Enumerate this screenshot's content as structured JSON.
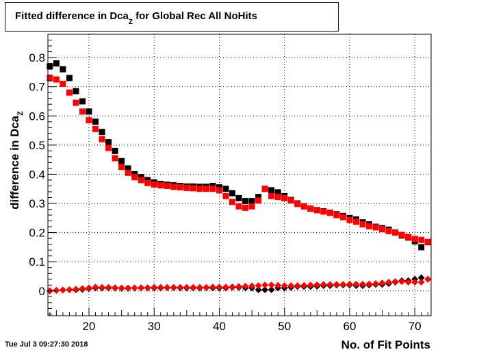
{
  "chart_data": {
    "type": "scatter",
    "title_main": "Fitted difference in Dca",
    "title_sub": "Z",
    "title_rest": " for Global Rec All NoHits",
    "xlabel": "No. of Fit Points",
    "ylabel_main": "difference in Dca",
    "ylabel_sub": "Z",
    "xlim": [
      13.7,
      72.5
    ],
    "ylim": [
      -0.085,
      0.88
    ],
    "x_ticks": [
      20,
      30,
      40,
      50,
      60,
      70
    ],
    "y_ticks": [
      0,
      0.1,
      0.2,
      0.3,
      0.4,
      0.5,
      0.6,
      0.7,
      0.8
    ],
    "grid": true,
    "series": [
      {
        "color": "#000000",
        "marker": "square",
        "x": [
          14,
          15,
          16,
          17,
          18,
          19,
          20,
          21,
          22,
          23,
          24,
          25,
          26,
          27,
          28,
          29,
          30,
          31,
          32,
          33,
          34,
          35,
          36,
          37,
          38,
          39,
          40,
          41,
          42,
          43,
          44,
          45,
          46,
          47,
          48,
          49,
          50,
          51,
          52,
          53,
          54,
          55,
          56,
          57,
          58,
          59,
          60,
          61,
          62,
          63,
          64,
          65,
          66,
          67,
          68,
          69,
          70,
          71,
          72
        ],
        "y": [
          0.77,
          0.78,
          0.76,
          0.73,
          0.685,
          0.65,
          0.615,
          0.58,
          0.545,
          0.51,
          0.48,
          0.445,
          0.42,
          0.4,
          0.39,
          0.38,
          0.372,
          0.367,
          0.364,
          0.362,
          0.36,
          0.358,
          0.358,
          0.357,
          0.357,
          0.36,
          0.355,
          0.35,
          0.335,
          0.318,
          0.308,
          0.308,
          0.322,
          0.35,
          0.345,
          0.338,
          0.325,
          0.312,
          0.3,
          0.29,
          0.282,
          0.277,
          0.273,
          0.268,
          0.263,
          0.257,
          0.25,
          0.245,
          0.235,
          0.228,
          0.22,
          0.215,
          0.21,
          0.2,
          0.19,
          0.183,
          0.17,
          0.15,
          0.167
        ]
      },
      {
        "color": "#ff0000",
        "marker": "square",
        "x": [
          14,
          15,
          16,
          17,
          18,
          19,
          20,
          21,
          22,
          23,
          24,
          25,
          26,
          27,
          28,
          29,
          30,
          31,
          32,
          33,
          34,
          35,
          36,
          37,
          38,
          39,
          40,
          41,
          42,
          43,
          44,
          45,
          46,
          47,
          48,
          49,
          50,
          51,
          52,
          53,
          54,
          55,
          56,
          57,
          58,
          59,
          60,
          61,
          62,
          63,
          64,
          65,
          66,
          67,
          68,
          69,
          70,
          71,
          72
        ],
        "y": [
          0.73,
          0.725,
          0.71,
          0.68,
          0.645,
          0.615,
          0.585,
          0.555,
          0.52,
          0.49,
          0.455,
          0.425,
          0.405,
          0.39,
          0.38,
          0.37,
          0.365,
          0.362,
          0.36,
          0.357,
          0.355,
          0.353,
          0.352,
          0.35,
          0.35,
          0.35,
          0.345,
          0.325,
          0.305,
          0.29,
          0.285,
          0.29,
          0.31,
          0.35,
          0.325,
          0.322,
          0.318,
          0.31,
          0.298,
          0.29,
          0.282,
          0.277,
          0.272,
          0.268,
          0.26,
          0.253,
          0.243,
          0.237,
          0.228,
          0.222,
          0.218,
          0.212,
          0.205,
          0.2,
          0.192,
          0.185,
          0.178,
          0.175,
          0.168
        ]
      },
      {
        "color": "#000000",
        "marker": "diamond",
        "x": [
          14,
          15,
          16,
          17,
          18,
          19,
          20,
          21,
          22,
          23,
          24,
          25,
          26,
          27,
          28,
          29,
          30,
          31,
          32,
          33,
          34,
          35,
          36,
          37,
          38,
          39,
          40,
          41,
          42,
          43,
          44,
          45,
          46,
          47,
          48,
          49,
          50,
          51,
          52,
          53,
          54,
          55,
          56,
          57,
          58,
          59,
          60,
          61,
          62,
          63,
          64,
          65,
          66,
          67,
          68,
          69,
          70,
          71,
          72
        ],
        "y": [
          0.0,
          0.002,
          0.003,
          0.004,
          0.004,
          0.005,
          0.008,
          0.01,
          0.01,
          0.01,
          0.01,
          0.009,
          0.009,
          0.01,
          0.01,
          0.01,
          0.01,
          0.01,
          0.011,
          0.011,
          0.01,
          0.01,
          0.01,
          0.01,
          0.011,
          0.01,
          0.01,
          0.01,
          0.012,
          0.012,
          0.01,
          0.01,
          0.004,
          0.004,
          0.004,
          0.01,
          0.01,
          0.012,
          0.015,
          0.015,
          0.015,
          0.016,
          0.018,
          0.018,
          0.02,
          0.02,
          0.02,
          0.018,
          0.018,
          0.02,
          0.022,
          0.022,
          0.025,
          0.03,
          0.035,
          0.035,
          0.04,
          0.045,
          0.04
        ]
      },
      {
        "color": "#ff0000",
        "marker": "diamond",
        "x": [
          14,
          15,
          16,
          17,
          18,
          19,
          20,
          21,
          22,
          23,
          24,
          25,
          26,
          27,
          28,
          29,
          30,
          31,
          32,
          33,
          34,
          35,
          36,
          37,
          38,
          39,
          40,
          41,
          42,
          43,
          44,
          45,
          46,
          47,
          48,
          49,
          50,
          51,
          52,
          53,
          54,
          55,
          56,
          57,
          58,
          59,
          60,
          61,
          62,
          63,
          64,
          65,
          66,
          67,
          68,
          69,
          70,
          71,
          72
        ],
        "y": [
          0.0,
          0.002,
          0.003,
          0.004,
          0.006,
          0.008,
          0.01,
          0.013,
          0.012,
          0.012,
          0.011,
          0.01,
          0.01,
          0.01,
          0.011,
          0.011,
          0.012,
          0.012,
          0.012,
          0.012,
          0.012,
          0.012,
          0.012,
          0.012,
          0.012,
          0.013,
          0.013,
          0.013,
          0.014,
          0.015,
          0.016,
          0.017,
          0.018,
          0.02,
          0.02,
          0.019,
          0.018,
          0.018,
          0.018,
          0.019,
          0.02,
          0.021,
          0.022,
          0.022,
          0.022,
          0.022,
          0.023,
          0.023,
          0.023,
          0.024,
          0.025,
          0.027,
          0.03,
          0.032,
          0.032,
          0.03,
          0.03,
          0.03,
          0.04
        ]
      }
    ]
  },
  "footer": {
    "timestamp": "Tue Jul  3 09:27:30 2018"
  }
}
